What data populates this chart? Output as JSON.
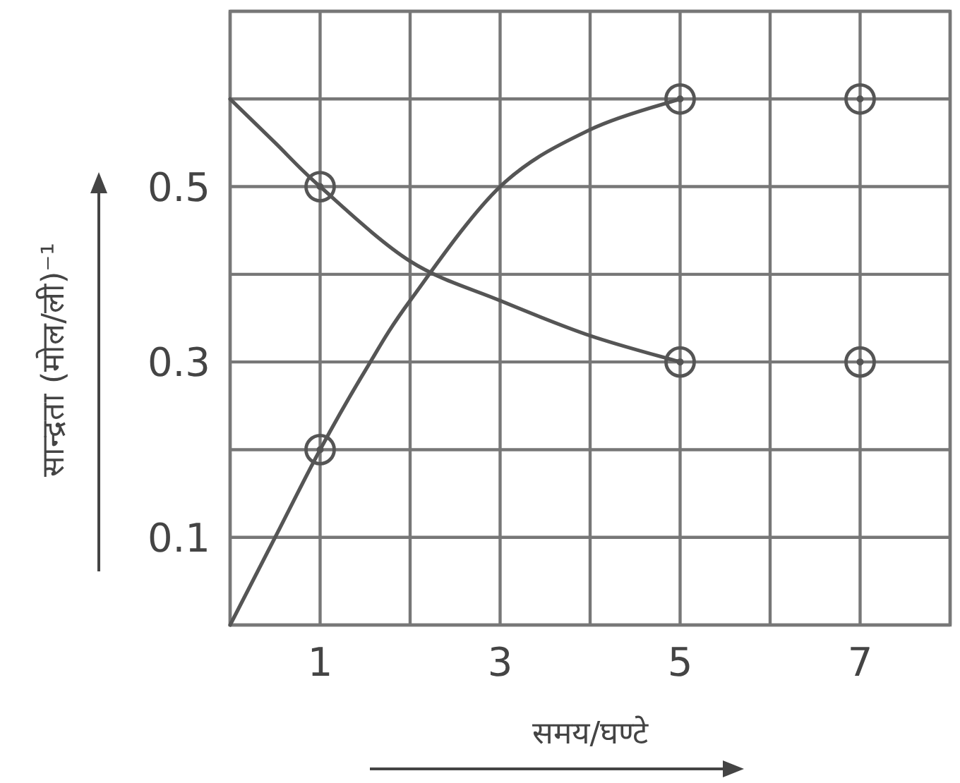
{
  "chart_data": {
    "type": "line",
    "xlabel": "समय/घण्टे",
    "ylabel": "सान्द्रता (मोल/ली)⁻¹",
    "xlim": [
      0,
      8
    ],
    "ylim": [
      0,
      0.7
    ],
    "xticks": [
      {
        "value": 0,
        "label": null
      },
      1,
      {
        "value": 2,
        "label": null
      },
      3,
      {
        "value": 4,
        "label": null
      },
      5,
      {
        "value": 6,
        "label": null
      },
      7,
      {
        "value": 8,
        "label": null
      }
    ],
    "yticks": [
      {
        "value": 0,
        "label": null
      },
      0.1,
      {
        "value": 0.2,
        "label": null
      },
      0.3,
      {
        "value": 0.4,
        "label": null
      },
      0.5,
      {
        "value": 0.6,
        "label": null
      },
      {
        "value": 0.7,
        "label": null
      }
    ],
    "grid": true,
    "line_style": "solid",
    "marker": "none",
    "series": [
      {
        "color": "#555555",
        "x": [
          0,
          0.5,
          1,
          2,
          3,
          4,
          5
        ],
        "values": [
          0.6,
          0.55,
          0.5,
          0.415,
          0.37,
          0.33,
          0.3
        ]
      },
      {
        "color": "#555555",
        "x": [
          0,
          0.5,
          1,
          1.5,
          2,
          3,
          4,
          5
        ],
        "values": [
          0,
          0.1,
          0.2,
          0.29,
          0.37,
          0.5,
          0.565,
          0.6
        ]
      },
      {
        "type": "scatter",
        "marker": "circle",
        "color": "#555555",
        "x": [
          1,
          5,
          7,
          1,
          5,
          7
        ],
        "values": [
          0.5,
          0.3,
          0.3,
          0.2,
          0.6,
          0.6
        ]
      }
    ]
  }
}
